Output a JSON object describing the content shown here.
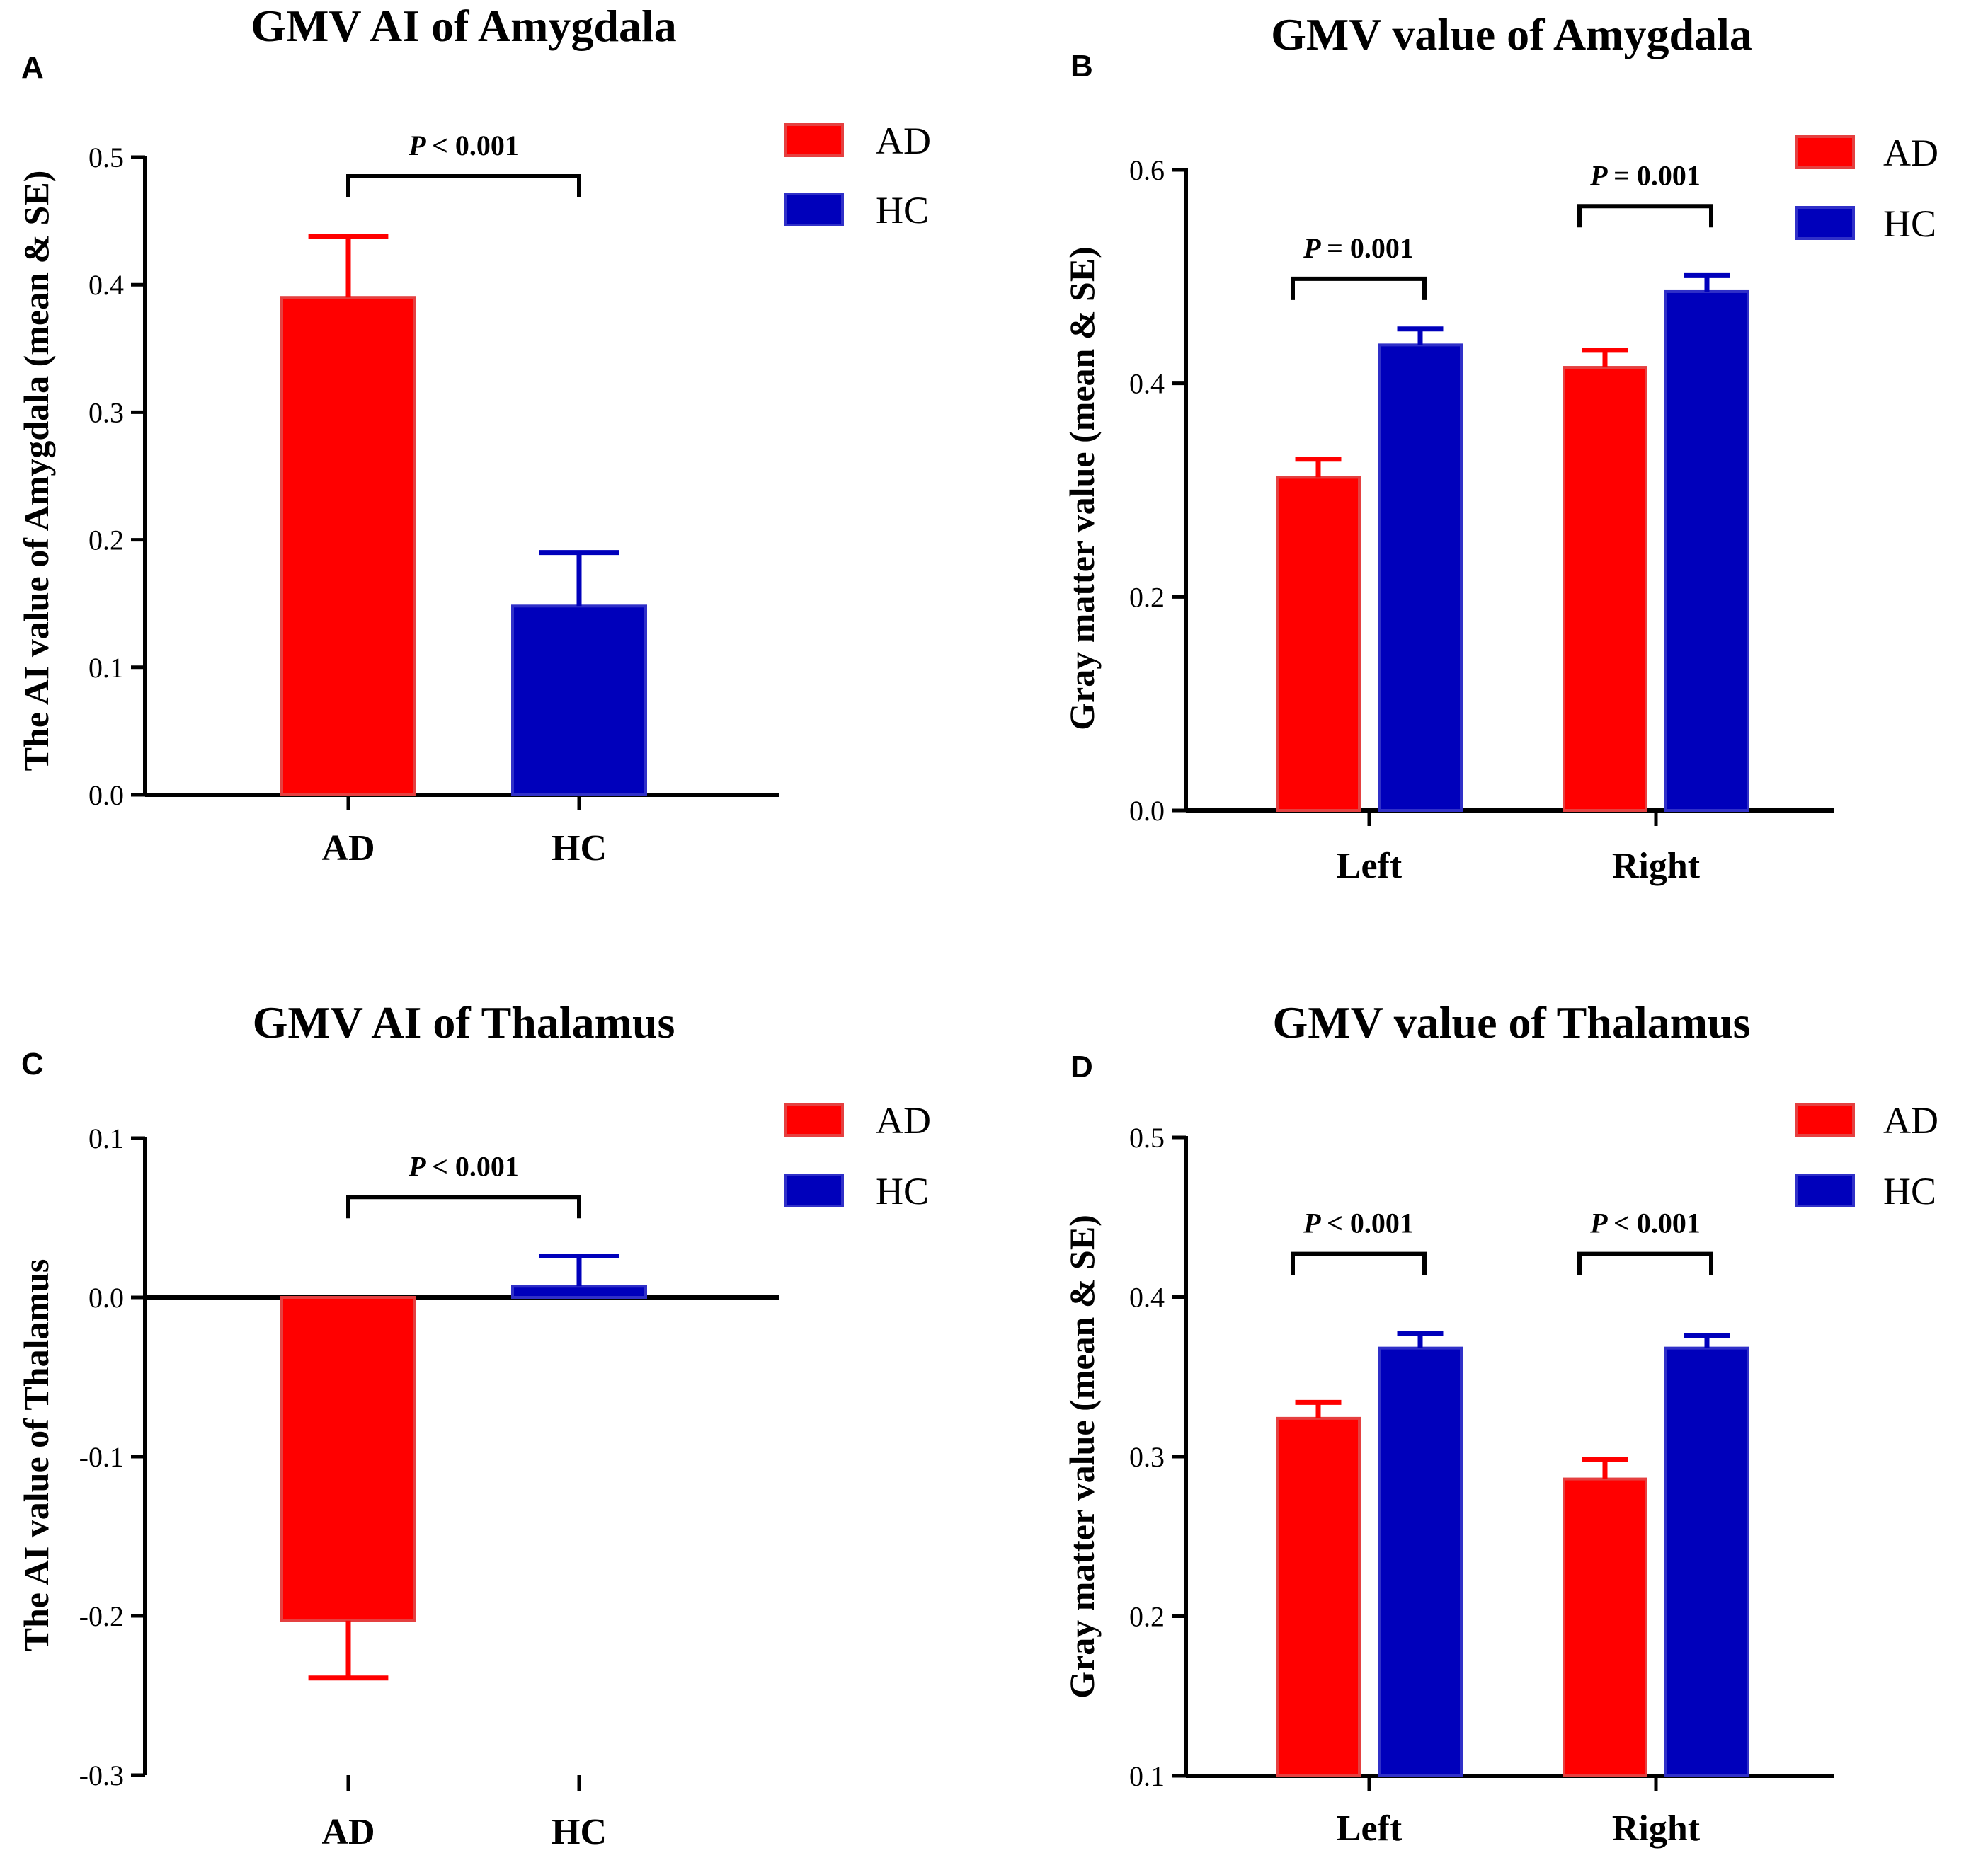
{
  "figure": {
    "colors": {
      "AD": "#ff0000",
      "HC": "#0000bb"
    },
    "legend": [
      "AD",
      "HC"
    ]
  },
  "chart_data": [
    {
      "panel": "A",
      "type": "bar",
      "title": "GMV AI of Amygdala",
      "ylabel": "The AI value of Amygdala (mean & SE)",
      "xlabel": "",
      "ylim": [
        0.0,
        0.5
      ],
      "yticks": [
        0.0,
        0.1,
        0.2,
        0.3,
        0.4,
        0.5
      ],
      "ytick_labels": [
        "0.0",
        "0.1",
        "0.2",
        "0.3",
        "0.4",
        "0.5"
      ],
      "categories": [
        "AD",
        "HC"
      ],
      "series": [
        {
          "name": "AD",
          "values": [
            0.39,
            null
          ],
          "errors": [
            0.048,
            null
          ]
        },
        {
          "name": "HC",
          "values": [
            null,
            0.148
          ],
          "errors": [
            null,
            0.042
          ]
        }
      ],
      "annotations": [
        {
          "text": "< 0.001",
          "p": "P",
          "from": 0,
          "to": 1,
          "y": 0.485
        }
      ],
      "legend_position": "top-right"
    },
    {
      "panel": "B",
      "type": "bar",
      "title": "GMV value of Amygdala",
      "ylabel": "Gray matter value (mean & SE)",
      "xlabel": "",
      "ylim": [
        0.0,
        0.6
      ],
      "yticks": [
        0.0,
        0.2,
        0.4,
        0.6
      ],
      "ytick_labels": [
        "0.0",
        "0.2",
        "0.4",
        "0.6"
      ],
      "categories": [
        "Left",
        "Right"
      ],
      "series": [
        {
          "name": "AD",
          "values": [
            0.312,
            0.415
          ],
          "errors": [
            0.017,
            0.016
          ]
        },
        {
          "name": "HC",
          "values": [
            0.436,
            0.486
          ],
          "errors": [
            0.015,
            0.015
          ]
        }
      ],
      "annotations": [
        {
          "text": "= 0.001",
          "p": "P",
          "group": 0,
          "y": 0.498
        },
        {
          "text": "= 0.001",
          "p": "P",
          "group": 1,
          "y": 0.566
        }
      ],
      "legend_position": "top-right"
    },
    {
      "panel": "C",
      "type": "bar",
      "title": "GMV AI of Thalamus",
      "ylabel": "The AI value of Thalamus",
      "xlabel": "",
      "ylim": [
        -0.3,
        0.1
      ],
      "yticks": [
        -0.3,
        -0.2,
        -0.1,
        0.0,
        0.1
      ],
      "ytick_labels": [
        "-0.3",
        "-0.2",
        "-0.1",
        "0.0",
        "0.1"
      ],
      "categories": [
        "AD",
        "HC"
      ],
      "series": [
        {
          "name": "AD",
          "values": [
            -0.203,
            null
          ],
          "errors": [
            0.036,
            null
          ]
        },
        {
          "name": "HC",
          "values": [
            null,
            0.007
          ],
          "errors": [
            null,
            0.019
          ]
        }
      ],
      "annotations": [
        {
          "text": "< 0.001",
          "p": "P",
          "from": 0,
          "to": 1,
          "y": 0.063
        }
      ],
      "legend_position": "top-right"
    },
    {
      "panel": "D",
      "type": "bar",
      "title": "GMV value of Thalamus",
      "ylabel": "Gray matter value (mean & SE)",
      "xlabel": "",
      "ylim": [
        0.1,
        0.5
      ],
      "yticks": [
        0.1,
        0.2,
        0.3,
        0.4,
        0.5
      ],
      "ytick_labels": [
        "0.1",
        "0.2",
        "0.3",
        "0.4",
        "0.5"
      ],
      "categories": [
        "Left",
        "Right"
      ],
      "series": [
        {
          "name": "AD",
          "values": [
            0.324,
            0.286
          ],
          "errors": [
            0.01,
            0.012
          ]
        },
        {
          "name": "HC",
          "values": [
            0.368,
            0.368
          ],
          "errors": [
            0.009,
            0.008
          ]
        }
      ],
      "annotations": [
        {
          "text": "< 0.001",
          "p": "P",
          "group": 0,
          "y": 0.427
        },
        {
          "text": "< 0.001",
          "p": "P",
          "group": 1,
          "y": 0.427
        }
      ],
      "legend_position": "top-right"
    }
  ]
}
